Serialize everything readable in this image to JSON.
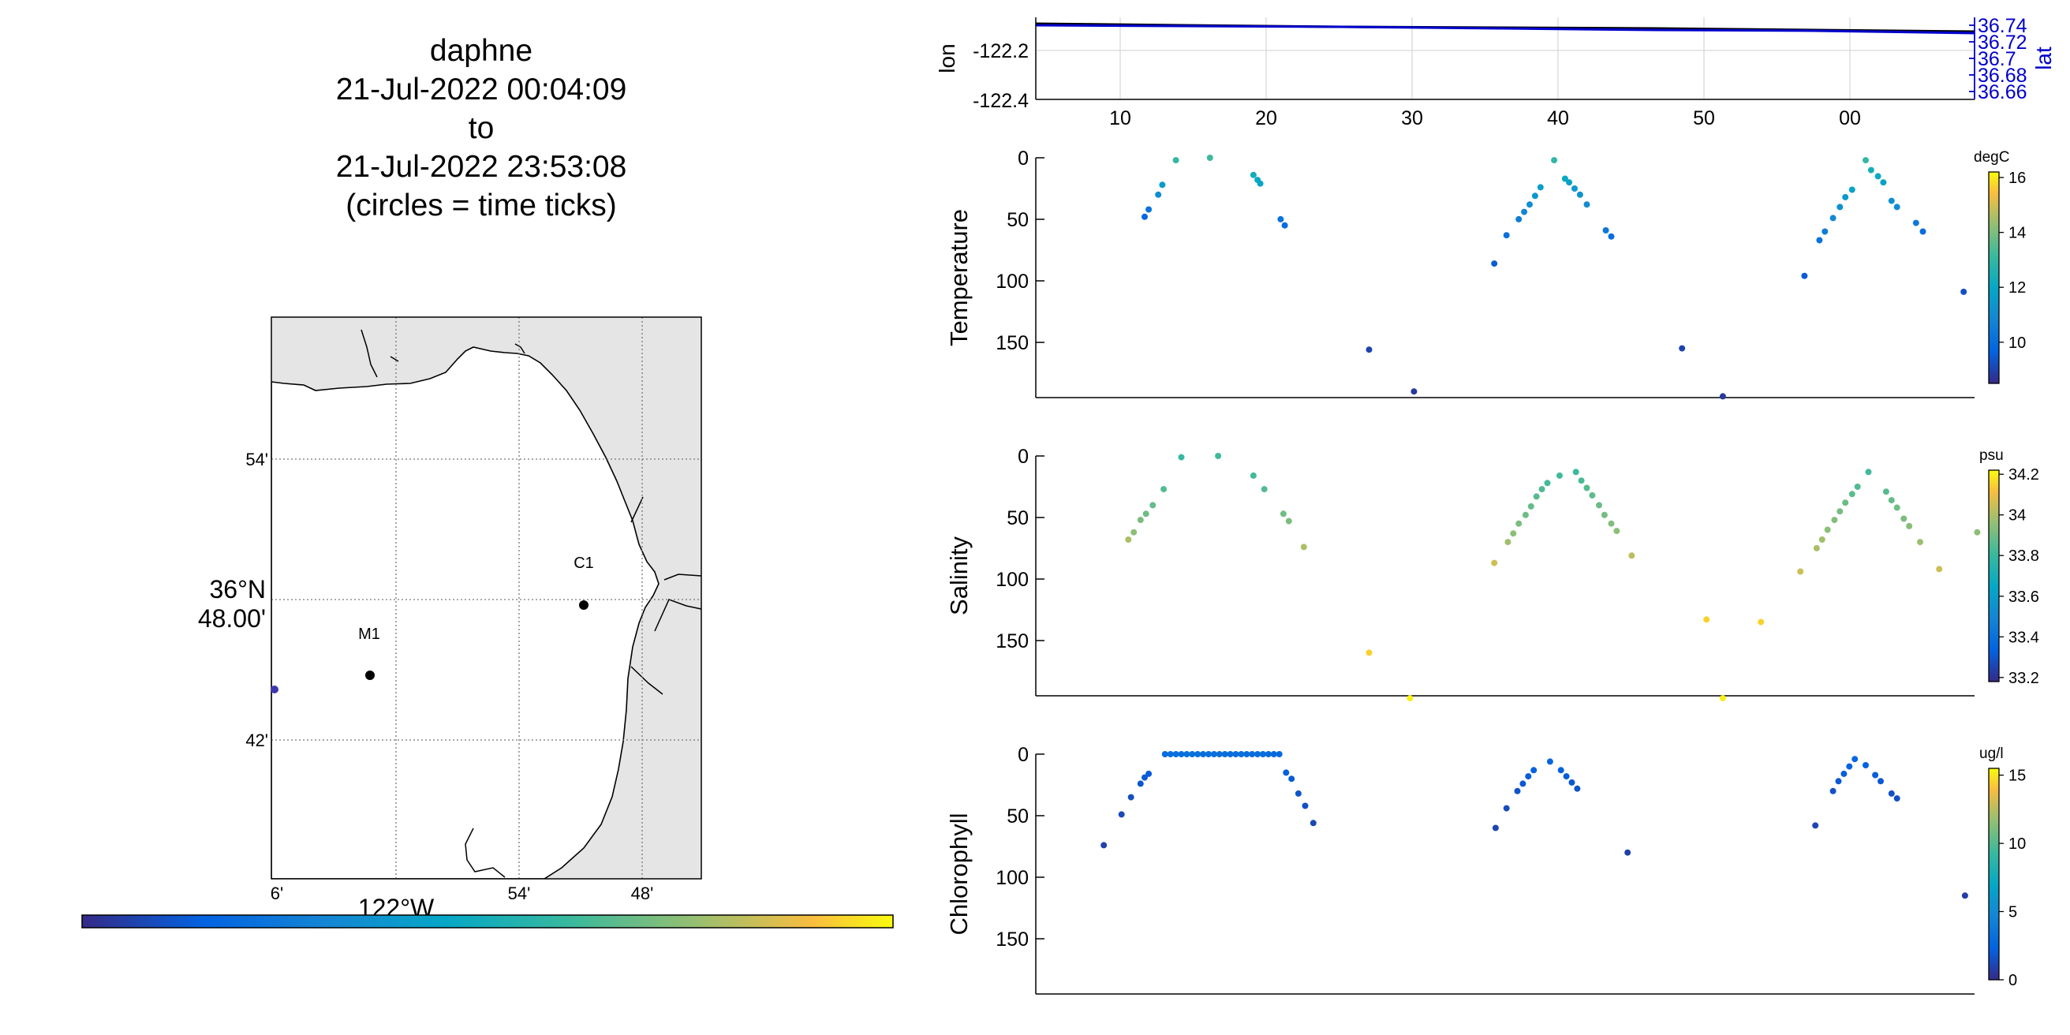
{
  "title": {
    "vehicle": "daphne",
    "start": "21-Jul-2022 00:04:09",
    "to": "to",
    "end": "21-Jul-2022 23:53:08",
    "note": "(circles = time ticks)"
  },
  "map": {
    "lat_ticks": [
      "54'",
      "42'"
    ],
    "lat_center_label": [
      "36°N",
      "48.00'"
    ],
    "lon_ticks": [
      "6'",
      "54'",
      "48'"
    ],
    "lon_center_label": "122°W",
    "land_color": "#e5e5e5",
    "stations": [
      {
        "name": "M1",
        "lon": -122.02,
        "lat": 36.75
      },
      {
        "name": "C1",
        "lon": -121.84,
        "lat": 36.797
      }
    ],
    "colorbar": "parula"
  },
  "chart_data": [
    {
      "type": "line",
      "ylabel": "lon",
      "ylabel_right": "lat",
      "x_tick_labels": [
        "10",
        "20",
        "30",
        "40",
        "50",
        "00"
      ],
      "yticks": [
        -122.2,
        -122.4
      ],
      "yticks_right": [
        36.74,
        36.72,
        36.7,
        36.68,
        36.66
      ],
      "right_axis_color": "#0000cc",
      "grid": true,
      "series": [
        {
          "x": [
            0,
            1
          ],
          "y": [
            -122.05,
            -122.13
          ]
        },
        {
          "x": [
            0,
            1
          ],
          "y": [
            36.74,
            36.72
          ]
        }
      ]
    },
    {
      "type": "scatter",
      "ylabel": "Temperature",
      "colorbar_label": "degC",
      "colorbar_ticks": [
        16,
        14,
        12,
        10
      ],
      "colorbar_range": [
        8.5,
        16.2
      ],
      "ylim": [
        195,
        0
      ],
      "yticks": [
        0,
        50,
        100,
        150
      ],
      "points": [
        [
          8.0,
          48,
          9.8
        ],
        [
          8.3,
          42,
          10.2
        ],
        [
          9.0,
          30,
          11
        ],
        [
          9.3,
          22,
          11.6
        ],
        [
          10.3,
          2,
          13
        ],
        [
          12.8,
          0,
          13.2
        ],
        [
          16.0,
          14,
          12.3
        ],
        [
          16.3,
          18,
          12.1
        ],
        [
          16.5,
          21,
          11.9
        ],
        [
          18.0,
          50,
          10.2
        ],
        [
          18.3,
          55,
          9.9
        ],
        [
          24.5,
          156,
          9
        ],
        [
          27.8,
          190,
          8.8
        ],
        [
          33.7,
          86,
          9.5
        ],
        [
          34.6,
          63,
          10.1
        ],
        [
          35.5,
          50,
          10.5
        ],
        [
          35.9,
          44,
          10.8
        ],
        [
          36.3,
          38,
          11.1
        ],
        [
          36.7,
          31,
          11.4
        ],
        [
          37.1,
          24,
          11.7
        ],
        [
          38.1,
          2,
          13
        ],
        [
          38.9,
          17,
          12
        ],
        [
          39.2,
          20,
          11.8
        ],
        [
          39.6,
          25,
          11.5
        ],
        [
          40.0,
          30,
          11.3
        ],
        [
          40.5,
          38,
          11
        ],
        [
          41.9,
          59,
          10.3
        ],
        [
          42.3,
          64,
          10
        ],
        [
          47.5,
          155,
          9
        ],
        [
          50.5,
          194,
          8.8
        ],
        [
          56.5,
          96,
          9.5
        ],
        [
          57.6,
          67,
          10.2
        ],
        [
          58.0,
          60,
          10.5
        ],
        [
          58.6,
          49,
          10.9
        ],
        [
          59.1,
          40,
          11.2
        ],
        [
          59.5,
          32,
          11.5
        ],
        [
          60.0,
          26,
          11.8
        ],
        [
          61.0,
          2,
          13
        ],
        [
          61.4,
          10,
          12.4
        ],
        [
          61.9,
          15,
          12.1
        ],
        [
          62.3,
          20,
          11.8
        ],
        [
          62.9,
          35,
          11.2
        ],
        [
          63.3,
          40,
          11
        ],
        [
          64.7,
          53,
          10.4
        ],
        [
          65.2,
          60,
          10
        ],
        [
          68.2,
          109,
          9.3
        ]
      ]
    },
    {
      "type": "scatter",
      "ylabel": "Salinity",
      "colorbar_label": "psu",
      "colorbar_ticks": [
        34.2,
        34,
        33.8,
        33.6,
        33.4,
        33.2
      ],
      "colorbar_range": [
        33.18,
        34.22
      ],
      "ylim": [
        195,
        0
      ],
      "yticks": [
        0,
        50,
        100,
        150
      ],
      "points": [
        [
          6.8,
          68,
          34.0
        ],
        [
          7.2,
          62,
          33.95
        ],
        [
          7.7,
          52,
          33.92
        ],
        [
          8.1,
          47,
          33.9
        ],
        [
          8.6,
          40,
          33.88
        ],
        [
          9.4,
          27,
          33.85
        ],
        [
          10.7,
          1,
          33.8
        ],
        [
          13.4,
          0,
          33.82
        ],
        [
          16.0,
          16,
          33.82
        ],
        [
          16.8,
          27,
          33.85
        ],
        [
          18.2,
          47,
          33.9
        ],
        [
          18.6,
          53,
          33.92
        ],
        [
          19.7,
          74,
          34.0
        ],
        [
          24.5,
          160,
          34.15
        ],
        [
          27.5,
          197,
          34.2
        ],
        [
          33.7,
          87,
          34.05
        ],
        [
          34.7,
          70,
          33.98
        ],
        [
          35.1,
          63,
          33.95
        ],
        [
          35.5,
          55,
          33.92
        ],
        [
          36.0,
          48,
          33.9
        ],
        [
          36.4,
          41,
          33.88
        ],
        [
          36.8,
          33,
          33.86
        ],
        [
          37.2,
          27,
          33.84
        ],
        [
          37.6,
          22,
          33.82
        ],
        [
          38.5,
          16,
          33.82
        ],
        [
          39.7,
          13,
          33.81
        ],
        [
          40.1,
          20,
          33.83
        ],
        [
          40.5,
          26,
          33.85
        ],
        [
          40.9,
          32,
          33.87
        ],
        [
          41.4,
          40,
          33.89
        ],
        [
          41.8,
          48,
          33.91
        ],
        [
          42.3,
          55,
          33.93
        ],
        [
          42.7,
          61,
          33.95
        ],
        [
          43.8,
          81,
          34.02
        ],
        [
          49.3,
          133,
          34.15
        ],
        [
          50.5,
          197,
          34.2
        ],
        [
          53.3,
          135,
          34.15
        ],
        [
          56.2,
          94,
          34.05
        ],
        [
          57.4,
          75,
          34.0
        ],
        [
          57.8,
          68,
          33.98
        ],
        [
          58.2,
          60,
          33.95
        ],
        [
          58.7,
          52,
          33.93
        ],
        [
          59.1,
          45,
          33.91
        ],
        [
          59.5,
          38,
          33.89
        ],
        [
          60.0,
          31,
          33.87
        ],
        [
          60.4,
          25,
          33.85
        ],
        [
          61.2,
          13,
          33.82
        ],
        [
          62.5,
          29,
          33.86
        ],
        [
          62.9,
          36,
          33.88
        ],
        [
          63.3,
          42,
          33.9
        ],
        [
          63.8,
          51,
          33.92
        ],
        [
          64.2,
          57,
          33.94
        ],
        [
          65.0,
          70,
          33.97
        ],
        [
          66.4,
          92,
          34.05
        ],
        [
          69.2,
          62,
          33.95
        ]
      ]
    },
    {
      "type": "scatter",
      "ylabel": "Chlorophyll",
      "colorbar_label": "ug/l",
      "colorbar_ticks": [
        15,
        10,
        5,
        0
      ],
      "colorbar_range": [
        0,
        15.5
      ],
      "ylim": [
        195,
        0
      ],
      "yticks": [
        0,
        50,
        100,
        150
      ],
      "points": [
        [
          5.0,
          74,
          1.0
        ],
        [
          6.3,
          49,
          1.3
        ],
        [
          7.0,
          35,
          1.5
        ],
        [
          7.7,
          24,
          1.8
        ],
        [
          8.0,
          19,
          2.0
        ],
        [
          8.3,
          16,
          2.1
        ],
        [
          9.5,
          0,
          3.0
        ],
        [
          9.9,
          0,
          3.1
        ],
        [
          10.3,
          0,
          3.2
        ],
        [
          10.7,
          0,
          3.1
        ],
        [
          11.1,
          0,
          3.2
        ],
        [
          11.5,
          0,
          3.3
        ],
        [
          11.9,
          0,
          3.2
        ],
        [
          12.3,
          0,
          3.1
        ],
        [
          12.7,
          0,
          3.2
        ],
        [
          13.1,
          0,
          3.3
        ],
        [
          13.5,
          0,
          3.2
        ],
        [
          13.9,
          0,
          3.1
        ],
        [
          14.3,
          0,
          3.0
        ],
        [
          14.7,
          0,
          3.1
        ],
        [
          15.1,
          0,
          3.2
        ],
        [
          15.5,
          0,
          3.1
        ],
        [
          15.9,
          0,
          3.0
        ],
        [
          16.3,
          0,
          3.1
        ],
        [
          16.7,
          0,
          3.0
        ],
        [
          17.1,
          0,
          2.9
        ],
        [
          17.5,
          0,
          2.8
        ],
        [
          17.9,
          0,
          2.8
        ],
        [
          18.4,
          15,
          2.2
        ],
        [
          18.8,
          20,
          2.0
        ],
        [
          19.3,
          32,
          1.7
        ],
        [
          19.8,
          42,
          1.5
        ],
        [
          20.4,
          56,
          1.2
        ],
        [
          33.8,
          60,
          1.1
        ],
        [
          34.6,
          44,
          1.4
        ],
        [
          35.4,
          30,
          1.7
        ],
        [
          35.8,
          24,
          1.9
        ],
        [
          36.2,
          18,
          2.1
        ],
        [
          36.6,
          13,
          2.3
        ],
        [
          37.8,
          6,
          2.6
        ],
        [
          38.6,
          13,
          2.3
        ],
        [
          39.0,
          18,
          2.1
        ],
        [
          39.4,
          23,
          1.9
        ],
        [
          39.8,
          28,
          1.7
        ],
        [
          43.5,
          80,
          0.9
        ],
        [
          57.3,
          58,
          1.1
        ],
        [
          58.6,
          30,
          1.6
        ],
        [
          59.0,
          22,
          1.9
        ],
        [
          59.4,
          16,
          2.1
        ],
        [
          59.8,
          10,
          2.4
        ],
        [
          60.2,
          4,
          2.7
        ],
        [
          61.0,
          9,
          2.4
        ],
        [
          61.7,
          17,
          2.1
        ],
        [
          62.1,
          22,
          1.9
        ],
        [
          62.9,
          32,
          1.6
        ],
        [
          63.3,
          36,
          1.5
        ],
        [
          68.3,
          115,
          0.8
        ]
      ]
    }
  ]
}
